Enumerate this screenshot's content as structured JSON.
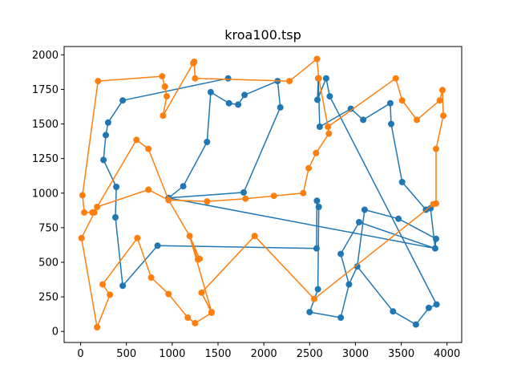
{
  "chart_data": {
    "type": "line",
    "title": "kroa100.tsp",
    "xlabel": "",
    "ylabel": "",
    "xlim": [
      -180,
      4160
    ],
    "ylim": [
      -80,
      2060
    ],
    "xticks": [
      0,
      500,
      1000,
      1500,
      2000,
      2500,
      3000,
      3500,
      4000
    ],
    "yticks": [
      0,
      250,
      500,
      750,
      1000,
      1250,
      1500,
      1750,
      2000
    ],
    "grid": false,
    "legend": "none",
    "colors": [
      "#1f77b4",
      "#ff7f0e"
    ],
    "series": [
      {
        "x": [
          1610,
          2150,
          2180,
          2585,
          2595,
          2660,
          2720,
          2510,
          2840,
          2930,
          3020,
          3120,
          3470,
          3800,
          3880,
          3870,
          3660,
          3410,
          3040,
          2930,
          2840,
          2605,
          2575,
          3120,
          3480,
          3930,
          3885,
          3820,
          3510,
          3390,
          3380,
          3085,
          2940,
          2960,
          2720,
          2680,
          2590,
          2575,
          2560,
          2580,
          1790,
          960,
          1120,
          1400,
          1390,
          1430,
          1620,
          1720,
          1780,
          1610,
          1620
        ],
        "y": [
          1830,
          1810,
          1620,
          1675,
          1825,
          1830,
          1700,
          140,
          100,
          340,
          465,
          880,
          815,
          890,
          670,
          600,
          50,
          145,
          790,
          560,
          1480,
          1480,
          600,
          620,
          820,
          380,
          1650,
          1500,
          1080,
          1500,
          1650,
          1530,
          1620,
          1610,
          1700,
          1830,
          1675,
          945,
          600,
          305,
          1005,
          965,
          1050,
          1370,
          1730,
          1655,
          1640,
          1710,
          1700,
          1830,
          1830
        ],
        "points": [
          [
            1610,
            1830
          ],
          [
            2150,
            1810
          ],
          [
            2180,
            1620
          ],
          [
            2585,
            1675
          ],
          [
            2595,
            1830
          ],
          [
            2680,
            1830
          ],
          [
            2720,
            1700
          ],
          [
            2610,
            1480
          ],
          [
            2580,
            945
          ],
          [
            2600,
            900
          ],
          [
            2590,
            305
          ],
          [
            2575,
            600
          ],
          [
            840,
            620
          ],
          [
            460,
            330
          ],
          [
            380,
            825
          ],
          [
            390,
            1045
          ],
          [
            250,
            1240
          ],
          [
            275,
            1420
          ],
          [
            300,
            1510
          ],
          [
            460,
            1670
          ],
          [
            1620,
            1830
          ],
          [
            2500,
            140
          ],
          [
            2840,
            100
          ],
          [
            2930,
            340
          ],
          [
            3020,
            470
          ],
          [
            3100,
            880
          ],
          [
            3470,
            815
          ],
          [
            3880,
            670
          ],
          [
            3870,
            600
          ],
          [
            3800,
            170
          ],
          [
            3660,
            50
          ],
          [
            3410,
            145
          ],
          [
            3040,
            790
          ],
          [
            2840,
            560
          ],
          [
            2930,
            1620
          ],
          [
            3085,
            1530
          ],
          [
            3380,
            1650
          ],
          [
            3390,
            1500
          ],
          [
            3510,
            1080
          ],
          [
            3770,
            880
          ],
          [
            3820,
            890
          ],
          [
            3885,
            195
          ],
          [
            960,
            965
          ],
          [
            1120,
            1050
          ],
          [
            1380,
            1370
          ],
          [
            1420,
            1730
          ],
          [
            1620,
            1650
          ],
          [
            1720,
            1640
          ],
          [
            1790,
            1710
          ],
          [
            1780,
            1005
          ],
          [
            2950,
            1610
          ],
          [
            2720,
            1700
          ]
        ],
        "path": [
          [
            1610,
            1830
          ],
          [
            460,
            1670
          ],
          [
            300,
            1510
          ],
          [
            275,
            1420
          ],
          [
            250,
            1240
          ],
          [
            390,
            1045
          ],
          [
            380,
            825
          ],
          [
            460,
            330
          ],
          [
            840,
            620
          ],
          [
            2575,
            600
          ],
          [
            2580,
            945
          ],
          [
            2600,
            900
          ],
          [
            2590,
            305
          ],
          [
            2500,
            140
          ],
          [
            2840,
            100
          ],
          [
            2930,
            340
          ],
          [
            3020,
            470
          ],
          [
            3100,
            880
          ],
          [
            3470,
            815
          ],
          [
            3880,
            670
          ],
          [
            3870,
            600
          ],
          [
            3040,
            790
          ],
          [
            2840,
            560
          ],
          [
            2930,
            340
          ],
          [
            3020,
            470
          ],
          [
            3410,
            145
          ],
          [
            3660,
            50
          ],
          [
            3800,
            170
          ],
          [
            3885,
            195
          ],
          [
            2720,
            1700
          ],
          [
            2680,
            1830
          ],
          [
            2585,
            1675
          ],
          [
            2595,
            1830
          ],
          [
            2610,
            1480
          ],
          [
            2950,
            1610
          ],
          [
            3085,
            1530
          ],
          [
            3380,
            1650
          ],
          [
            3390,
            1500
          ],
          [
            3510,
            1080
          ],
          [
            3770,
            880
          ],
          [
            3820,
            890
          ],
          [
            3870,
            600
          ],
          [
            960,
            965
          ],
          [
            1120,
            1050
          ],
          [
            1380,
            1370
          ],
          [
            1420,
            1730
          ],
          [
            1620,
            1650
          ],
          [
            1720,
            1640
          ],
          [
            1790,
            1710
          ],
          [
            2150,
            1810
          ],
          [
            2180,
            1620
          ],
          [
            1780,
            1005
          ],
          [
            960,
            965
          ]
        ]
      },
      {
        "path": [
          [
            2580,
            1970
          ],
          [
            2600,
            1830
          ],
          [
            2700,
            1480
          ],
          [
            2710,
            1430
          ],
          [
            2570,
            1290
          ],
          [
            2490,
            1180
          ],
          [
            2430,
            1000
          ],
          [
            2110,
            980
          ],
          [
            1800,
            960
          ],
          [
            1380,
            940
          ],
          [
            960,
            950
          ],
          [
            740,
            1025
          ],
          [
            180,
            900
          ],
          [
            130,
            860
          ],
          [
            40,
            860
          ],
          [
            20,
            985
          ],
          [
            190,
            1810
          ],
          [
            890,
            1845
          ],
          [
            920,
            1770
          ],
          [
            940,
            1700
          ],
          [
            900,
            1560
          ],
          [
            1230,
            1940
          ],
          [
            1240,
            1950
          ],
          [
            1250,
            1830
          ],
          [
            2280,
            1810
          ],
          [
            2580,
            1970
          ],
          [
            2600,
            1830
          ],
          [
            2700,
            1480
          ],
          [
            3440,
            1830
          ],
          [
            3510,
            1670
          ],
          [
            3670,
            1530
          ],
          [
            3920,
            1670
          ],
          [
            3950,
            1745
          ],
          [
            3960,
            1560
          ],
          [
            3880,
            1320
          ],
          [
            3880,
            925
          ],
          [
            3850,
            920
          ],
          [
            2550,
            235
          ],
          [
            1900,
            690
          ],
          [
            1320,
            280
          ],
          [
            1430,
            140
          ],
          [
            1190,
            690
          ],
          [
            1280,
            520
          ],
          [
            1300,
            525
          ],
          [
            1190,
            690
          ],
          [
            960,
            950
          ],
          [
            740,
            1320
          ],
          [
            610,
            1385
          ],
          [
            180,
            900
          ],
          [
            150,
            860
          ],
          [
            10,
            675
          ],
          [
            180,
            30
          ],
          [
            320,
            265
          ],
          [
            240,
            340
          ],
          [
            620,
            675
          ],
          [
            770,
            390
          ],
          [
            960,
            270
          ],
          [
            1170,
            100
          ],
          [
            1250,
            60
          ],
          [
            1430,
            135
          ],
          [
            1320,
            280
          ],
          [
            1900,
            690
          ],
          [
            2550,
            235
          ],
          [
            3850,
            920
          ]
        ]
      }
    ]
  }
}
